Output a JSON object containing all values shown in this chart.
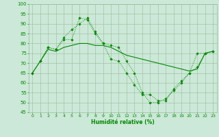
{
  "title": "",
  "xlabel": "Humidité relative (%)",
  "ylabel": "",
  "bg_color": "#cce8d8",
  "grid_color": "#99bb99",
  "line_color": "#008800",
  "xlim": [
    -0.5,
    23.5
  ],
  "ylim": [
    45,
    100
  ],
  "yticks": [
    45,
    50,
    55,
    60,
    65,
    70,
    75,
    80,
    85,
    90,
    95,
    100
  ],
  "xticks": [
    0,
    1,
    2,
    3,
    4,
    5,
    6,
    7,
    8,
    9,
    10,
    11,
    12,
    13,
    14,
    15,
    16,
    17,
    18,
    19,
    20,
    21,
    22,
    23
  ],
  "line1_x": [
    0,
    1,
    2,
    3,
    4,
    5,
    6,
    7,
    8,
    9,
    10,
    11,
    12,
    13,
    14,
    15,
    16,
    17,
    18,
    19,
    20,
    21,
    22,
    23
  ],
  "line1_y": [
    65,
    71,
    78,
    77,
    83,
    87,
    90,
    93,
    86,
    80,
    72,
    71,
    65,
    59,
    54,
    54,
    51,
    51,
    57,
    61,
    65,
    68,
    75,
    76
  ],
  "line2_x": [
    0,
    1,
    2,
    3,
    4,
    5,
    6,
    7,
    8,
    9,
    10,
    11,
    12,
    13,
    14,
    15,
    16,
    17,
    18,
    19,
    20,
    21,
    22,
    23
  ],
  "line2_y": [
    65,
    71,
    78,
    77,
    82,
    82,
    93,
    92,
    85,
    80,
    79,
    78,
    71,
    65,
    55,
    50,
    50,
    52,
    56,
    60,
    65,
    75,
    75,
    76
  ],
  "line3_x": [
    0,
    1,
    2,
    3,
    4,
    5,
    6,
    7,
    8,
    9,
    10,
    11,
    12,
    13,
    14,
    15,
    16,
    17,
    18,
    19,
    20,
    21,
    22,
    23
  ],
  "line3_y": [
    65,
    71,
    77,
    76,
    78,
    79,
    80,
    80,
    79,
    79,
    78,
    76,
    74,
    73,
    72,
    71,
    70,
    69,
    68,
    67,
    66,
    67,
    75,
    76
  ]
}
